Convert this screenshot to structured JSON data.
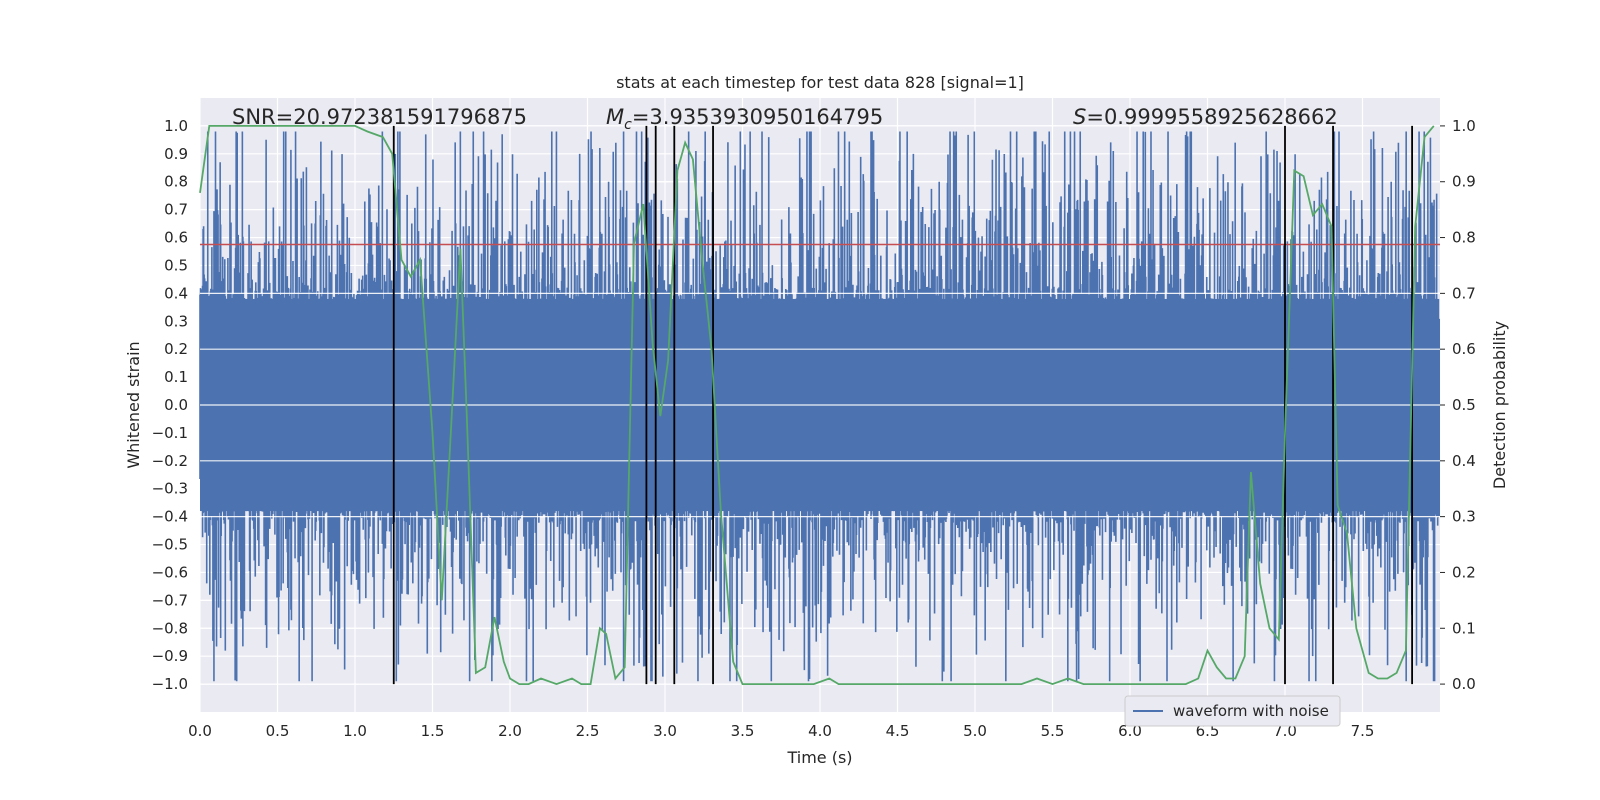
{
  "chart_data": {
    "type": "line",
    "title": "stats at each timestep for test data 828 [signal=1]",
    "xlabel": "Time (s)",
    "ylabel": "Whitened strain",
    "y2label": "Detection probability",
    "xlim": [
      0.0,
      8.0
    ],
    "ylim": [
      -1.1,
      1.1
    ],
    "y2lim": [
      -0.05,
      1.05
    ],
    "xticks": [
      "0.0",
      "0.5",
      "1.0",
      "1.5",
      "2.0",
      "2.5",
      "3.0",
      "3.5",
      "4.0",
      "4.5",
      "5.0",
      "5.5",
      "6.0",
      "6.5",
      "7.0",
      "7.5"
    ],
    "yticks": [
      "1.0",
      "0.9",
      "0.8",
      "0.7",
      "0.6",
      "0.5",
      "0.4",
      "0.3",
      "0.2",
      "0.1",
      "0.0",
      "-0.1",
      "-0.2",
      "-0.3",
      "-0.4",
      "-0.5",
      "-0.6",
      "-0.7",
      "-0.8",
      "-0.9",
      "-1.0"
    ],
    "y2ticks": [
      "1.0",
      "0.9",
      "0.8",
      "0.7",
      "0.6",
      "0.5",
      "0.4",
      "0.3",
      "0.2",
      "0.1",
      "0.0"
    ],
    "annotations": {
      "snr": "SNR=20.972381591796875",
      "mc_symbol": "M",
      "mc_sub": "c",
      "mc_value": "=3.9353930950164795",
      "s_symbol": "S",
      "s_value": "=0.9999558925628662"
    },
    "threshold": 0.575,
    "vertical_lines": [
      1.25,
      2.88,
      2.94,
      3.06,
      3.31,
      7.0,
      7.31,
      7.82
    ],
    "legend": "waveform with noise",
    "waveform": {
      "name": "waveform with noise",
      "n_samples": 2400,
      "core_amplitude": 0.38,
      "notable_peaks": [
        {
          "t": 0.13,
          "v": 0.87
        },
        {
          "t": 1.26,
          "v": 0.9
        },
        {
          "t": 1.28,
          "v": -0.93
        },
        {
          "t": 1.95,
          "v": 0.97
        },
        {
          "t": 2.45,
          "v": 0.9
        },
        {
          "t": 3.2,
          "v": 0.91
        },
        {
          "t": 3.67,
          "v": 0.96
        },
        {
          "t": 3.9,
          "v": -0.95
        },
        {
          "t": 4.05,
          "v": -0.97
        },
        {
          "t": 5.6,
          "v": -0.99
        },
        {
          "t": 6.68,
          "v": 0.94
        },
        {
          "t": 6.95,
          "v": 0.91
        },
        {
          "t": 7.18,
          "v": -0.9
        }
      ]
    },
    "probability": {
      "name": "detection probability",
      "x": [
        0.0,
        0.06,
        0.12,
        0.2,
        0.3,
        0.4,
        0.5,
        0.6,
        0.7,
        0.8,
        0.9,
        1.0,
        1.08,
        1.18,
        1.24,
        1.3,
        1.36,
        1.42,
        1.5,
        1.56,
        1.62,
        1.68,
        1.72,
        1.78,
        1.84,
        1.9,
        1.96,
        2.0,
        2.06,
        2.12,
        2.2,
        2.3,
        2.4,
        2.46,
        2.52,
        2.58,
        2.62,
        2.68,
        2.74,
        2.8,
        2.86,
        2.92,
        2.97,
        3.02,
        3.08,
        3.13,
        3.18,
        3.24,
        3.3,
        3.36,
        3.44,
        3.5,
        3.56,
        3.62,
        3.7,
        3.8,
        3.9,
        3.96,
        4.06,
        4.12,
        4.2,
        4.3,
        4.4,
        4.5,
        4.6,
        4.7,
        4.8,
        4.9,
        5.0,
        5.1,
        5.2,
        5.3,
        5.4,
        5.5,
        5.6,
        5.7,
        5.8,
        5.9,
        6.0,
        6.1,
        6.2,
        6.3,
        6.36,
        6.44,
        6.5,
        6.56,
        6.62,
        6.68,
        6.74,
        6.78,
        6.84,
        6.9,
        6.96,
        7.0,
        7.06,
        7.12,
        7.18,
        7.24,
        7.3,
        7.34,
        7.4,
        7.46,
        7.54,
        7.6,
        7.66,
        7.72,
        7.78,
        7.84,
        7.9,
        7.96
      ],
      "y": [
        0.88,
        1.0,
        1.0,
        1.0,
        1.0,
        1.0,
        1.0,
        1.0,
        1.0,
        1.0,
        1.0,
        1.0,
        0.99,
        0.98,
        0.95,
        0.76,
        0.73,
        0.76,
        0.45,
        0.15,
        0.46,
        0.78,
        0.49,
        0.02,
        0.03,
        0.12,
        0.04,
        0.01,
        0.0,
        0.0,
        0.01,
        0.0,
        0.01,
        0.0,
        0.0,
        0.1,
        0.09,
        0.01,
        0.03,
        0.79,
        0.86,
        0.61,
        0.48,
        0.58,
        0.92,
        0.97,
        0.94,
        0.76,
        0.6,
        0.31,
        0.04,
        0.0,
        0.0,
        0.0,
        0.0,
        0.0,
        0.0,
        0.0,
        0.01,
        0.0,
        0.0,
        0.0,
        0.0,
        0.0,
        0.0,
        0.0,
        0.0,
        0.0,
        0.0,
        0.0,
        0.0,
        0.0,
        0.01,
        0.0,
        0.01,
        0.0,
        0.0,
        0.0,
        0.0,
        0.0,
        0.0,
        0.0,
        0.0,
        0.01,
        0.06,
        0.03,
        0.01,
        0.01,
        0.05,
        0.38,
        0.18,
        0.1,
        0.08,
        0.45,
        0.92,
        0.91,
        0.84,
        0.86,
        0.82,
        0.32,
        0.27,
        0.1,
        0.02,
        0.01,
        0.01,
        0.02,
        0.06,
        0.82,
        0.98,
        1.0
      ]
    },
    "colors": {
      "background": "#eaeaf2",
      "grid": "#ffffff",
      "waveform": "#4c72b0",
      "probability": "#55a868",
      "threshold": "#c44e52",
      "vlines": "#000000"
    }
  }
}
